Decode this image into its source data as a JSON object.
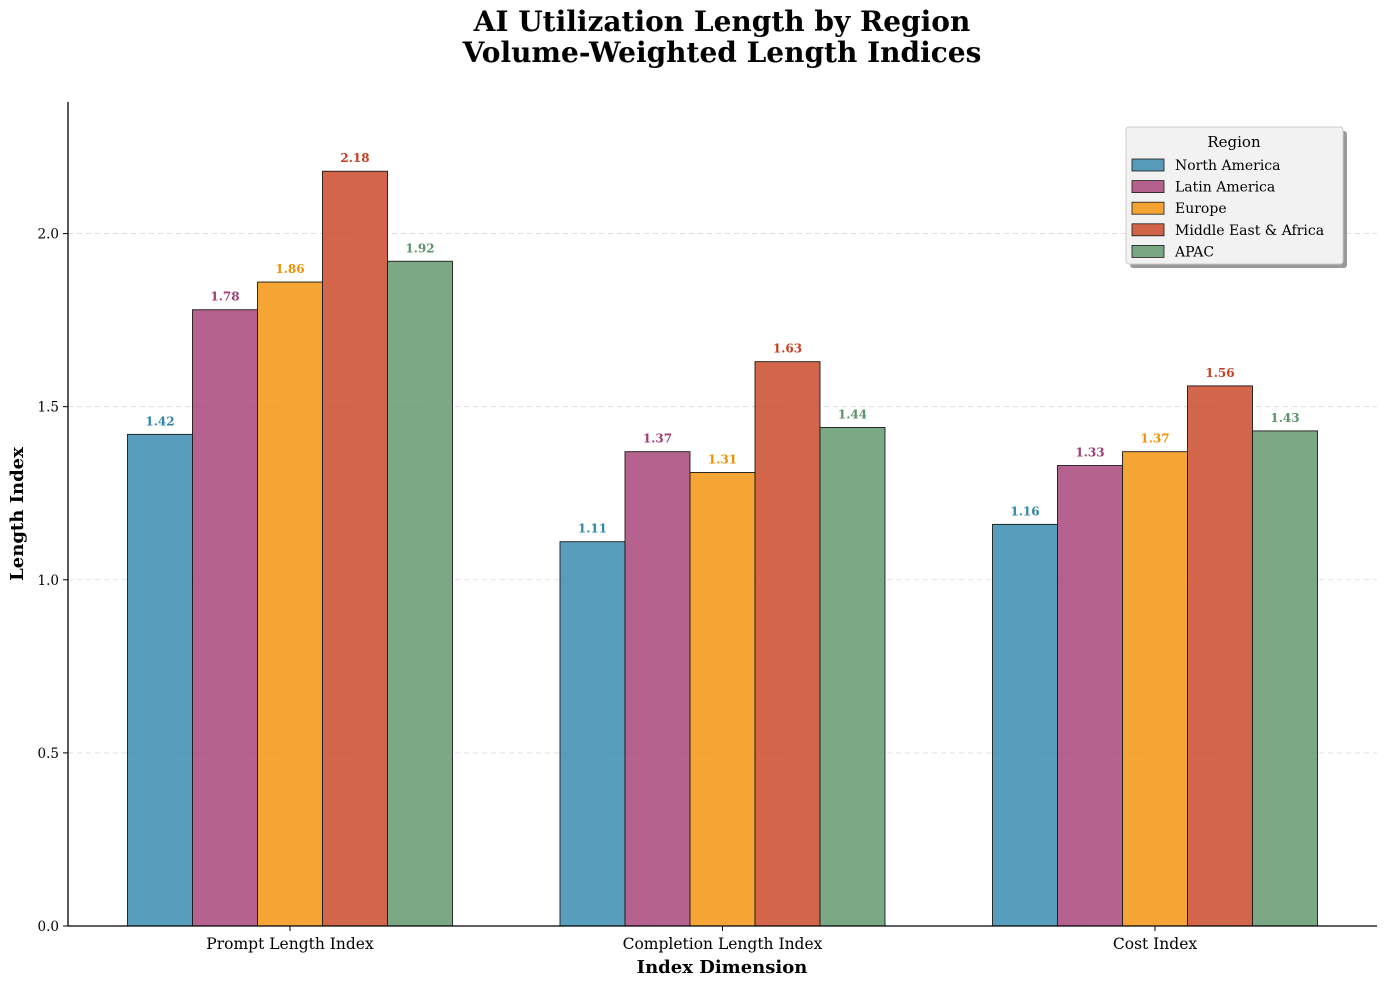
{
  "chart_data": {
    "type": "bar",
    "title": [
      "AI Utilization Length by Region",
      "Volume-Weighted Length Indices"
    ],
    "xlabel": "Index Dimension",
    "ylabel": "Length Index",
    "categories": [
      "Prompt Length Index",
      "Completion Length Index",
      "Cost Index"
    ],
    "ylim": [
      0,
      2.38
    ],
    "yticks": [
      0.0,
      0.5,
      1.0,
      1.5,
      2.0
    ],
    "ytick_labels": [
      "0.0",
      "0.5",
      "1.0",
      "1.5",
      "2.0"
    ],
    "grid": "y-dashed",
    "legend": {
      "title": "Region",
      "placement": "top-right"
    },
    "series": [
      {
        "name": "North America",
        "color": "#2E86AB",
        "values": [
          1.42,
          1.11,
          1.16
        ],
        "value_labels": [
          "1.42",
          "1.11",
          "1.16"
        ]
      },
      {
        "name": "Latin America",
        "color": "#A23B72",
        "values": [
          1.78,
          1.37,
          1.33
        ],
        "value_labels": [
          "1.78",
          "1.37",
          "1.33"
        ]
      },
      {
        "name": "Europe",
        "color": "#F18F01",
        "values": [
          1.86,
          1.31,
          1.37
        ],
        "value_labels": [
          "1.86",
          "1.31",
          "1.37"
        ]
      },
      {
        "name": "Middle East & Africa",
        "color": "#C73E1D",
        "values": [
          2.18,
          1.63,
          1.56
        ],
        "value_labels": [
          "2.18",
          "1.63",
          "1.56"
        ]
      },
      {
        "name": "APAC",
        "color": "#5A9367",
        "values": [
          1.92,
          1.44,
          1.43
        ],
        "value_labels": [
          "1.92",
          "1.44",
          "1.43"
        ]
      }
    ]
  }
}
